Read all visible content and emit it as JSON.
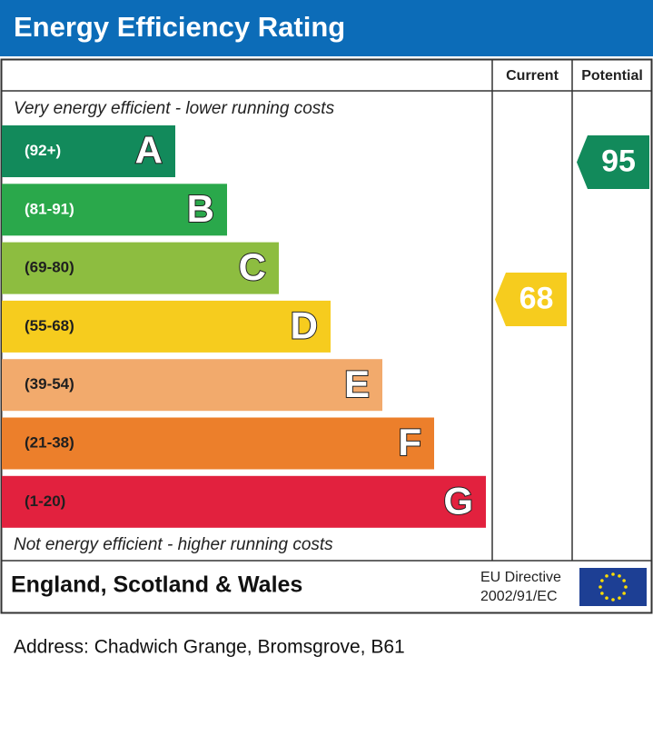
{
  "header": {
    "title": "Energy Efficiency Rating"
  },
  "columns": {
    "current": "Current",
    "potential": "Potential"
  },
  "top_note": "Very energy efficient - lower running costs",
  "bands": [
    {
      "range": "(92+)",
      "letter": "A",
      "color": "#128a5b",
      "text_color": "#ffffff"
    },
    {
      "range": "(81-91)",
      "letter": "B",
      "color": "#2aa84b",
      "text_color": "#ffffff"
    },
    {
      "range": "(69-80)",
      "letter": "C",
      "color": "#8dbd40",
      "text_color": "#1f1f1f"
    },
    {
      "range": "(55-68)",
      "letter": "D",
      "color": "#f6cc1e",
      "text_color": "#1f1f1f"
    },
    {
      "range": "(39-54)",
      "letter": "E",
      "color": "#f2aa6c",
      "text_color": "#1f1f1f"
    },
    {
      "range": "(21-38)",
      "letter": "F",
      "color": "#ec7f2b",
      "text_color": "#1f1f1f"
    },
    {
      "range": "(1-20)",
      "letter": "G",
      "color": "#e2213e",
      "text_color": "#1f1f1f"
    }
  ],
  "bottom_note": "Not energy efficient - higher running costs",
  "current": {
    "value": 68,
    "color": "#f6cc1e"
  },
  "potential": {
    "value": 95,
    "color": "#128a5b"
  },
  "footer": {
    "region": "England, Scotland & Wales",
    "directive": [
      "EU Directive",
      "2002/91/EC"
    ]
  },
  "address": "Address: Chadwich Grange, Bromsgrove, B61"
}
